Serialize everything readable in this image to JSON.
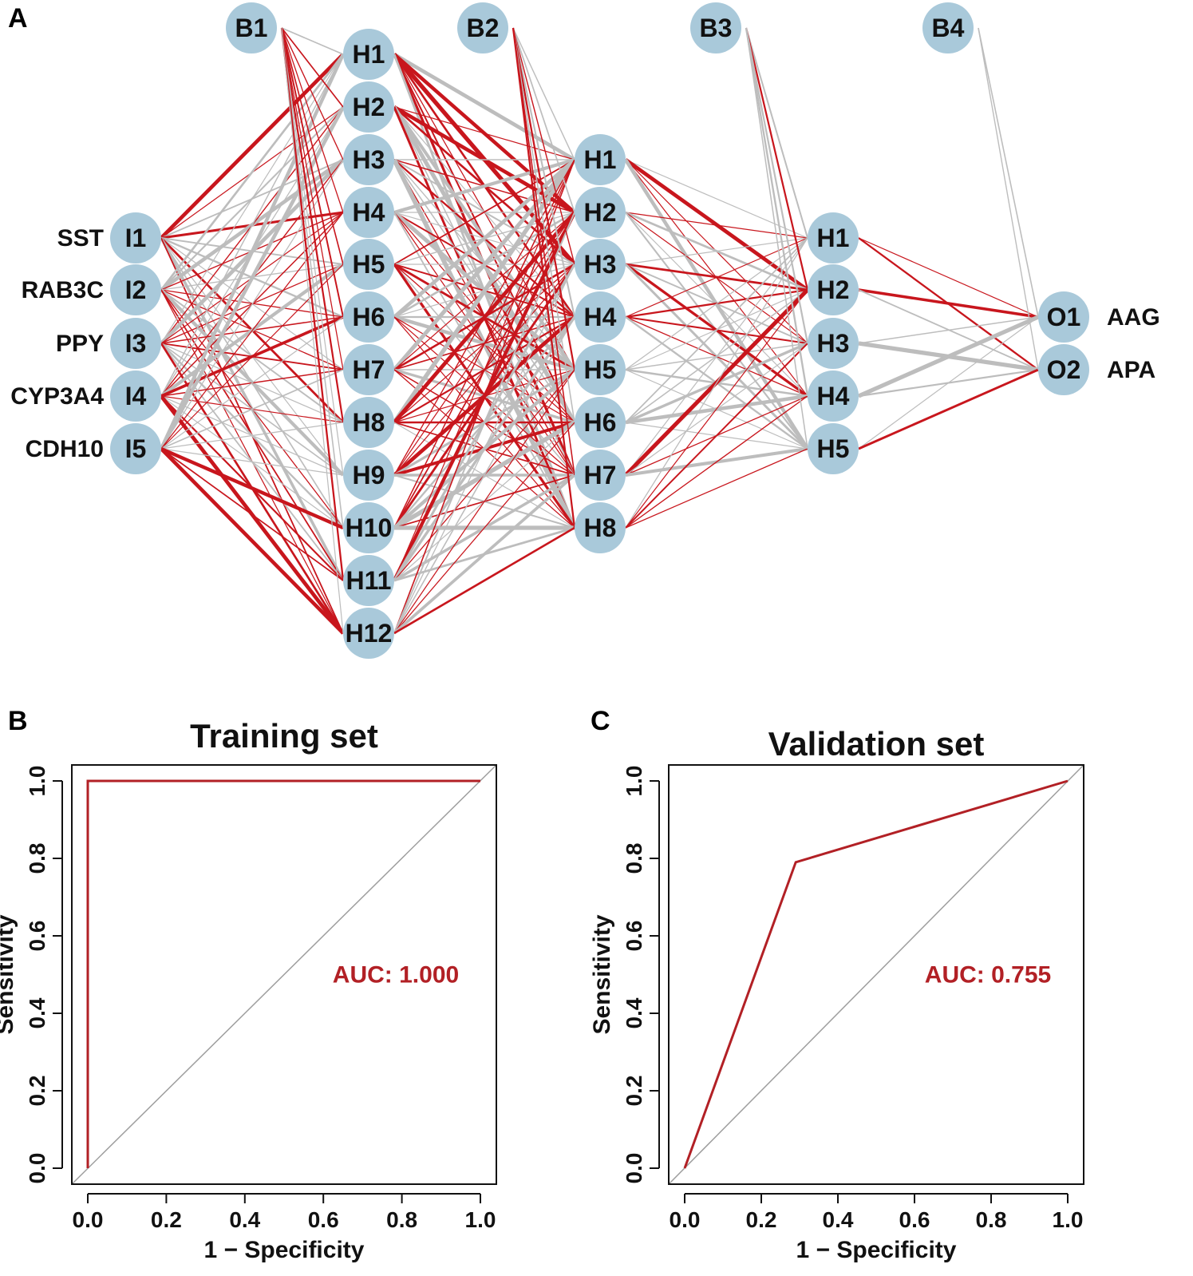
{
  "colors": {
    "node_fill": "#a9c9da",
    "positive_weight": "#c8161d",
    "negative_weight": "#bdbdbd",
    "roc_line": "#b22025",
    "diagonal": "#9e9e9e",
    "axis": "#111111"
  },
  "panel_a": {
    "letter": "A",
    "layers": [
      {
        "nodes": [
          "I1",
          "I2",
          "I3",
          "I4",
          "I5"
        ],
        "side_labels": [
          "SST",
          "RAB3C",
          "PPY",
          "CYP3A4",
          "CDH10"
        ]
      },
      {
        "nodes": [
          "H1",
          "H2",
          "H3",
          "H4",
          "H5",
          "H6",
          "H7",
          "H8",
          "H9",
          "H10",
          "H11",
          "H12"
        ]
      },
      {
        "nodes": [
          "H1",
          "H2",
          "H3",
          "H4",
          "H5",
          "H6",
          "H7",
          "H8"
        ]
      },
      {
        "nodes": [
          "H1",
          "H2",
          "H3",
          "H4",
          "H5"
        ]
      },
      {
        "nodes": [
          "O1",
          "O2"
        ],
        "side_labels": [
          "AAG",
          "APA"
        ]
      }
    ],
    "bias_nodes": [
      "B1",
      "B2",
      "B3",
      "B4"
    ]
  },
  "chart_data": [
    {
      "type": "line",
      "panel_letter": "B",
      "title": "Training set",
      "xlabel": "1 − Specificity",
      "ylabel": "Sensitivity",
      "xlim": [
        0.0,
        1.0
      ],
      "ylim": [
        0.0,
        1.0
      ],
      "xticks": [
        "0.0",
        "0.2",
        "0.4",
        "0.6",
        "0.8",
        "1.0"
      ],
      "yticks": [
        "0.0",
        "0.2",
        "0.4",
        "0.6",
        "0.8",
        "1.0"
      ],
      "series": [
        {
          "x": [
            0.0,
            0.0,
            1.0
          ],
          "y": [
            0.0,
            1.0,
            1.0
          ]
        }
      ],
      "annotation": "AUC: 1.000",
      "grid": false
    },
    {
      "type": "line",
      "panel_letter": "C",
      "title": "Validation set",
      "xlabel": "1 − Specificity",
      "ylabel": "Sensitivity",
      "xlim": [
        0.0,
        1.0
      ],
      "ylim": [
        0.0,
        1.0
      ],
      "xticks": [
        "0.0",
        "0.2",
        "0.4",
        "0.6",
        "0.8",
        "1.0"
      ],
      "yticks": [
        "0.0",
        "0.2",
        "0.4",
        "0.6",
        "0.8",
        "1.0"
      ],
      "series": [
        {
          "x": [
            0.0,
            0.29,
            1.0
          ],
          "y": [
            0.0,
            0.79,
            1.0
          ]
        }
      ],
      "annotation": "AUC: 0.755",
      "grid": false
    }
  ]
}
